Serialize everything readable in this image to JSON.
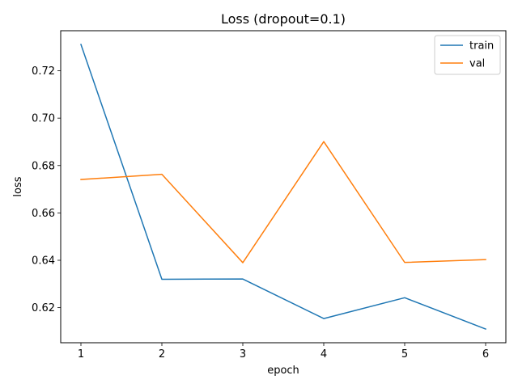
{
  "chart_data": {
    "type": "line",
    "title": "Loss (dropout=0.1)",
    "xlabel": "epoch",
    "ylabel": "loss",
    "x": [
      1,
      2,
      3,
      4,
      5,
      6
    ],
    "xlim": [
      0.75,
      6.25
    ],
    "ylim": [
      0.6052,
      0.7369
    ],
    "xticks": [
      1,
      2,
      3,
      4,
      5,
      6
    ],
    "yticks": [
      0.62,
      0.64,
      0.66,
      0.68,
      0.7,
      0.72
    ],
    "ytick_labels": [
      "0.62",
      "0.64",
      "0.66",
      "0.68",
      "0.70",
      "0.72"
    ],
    "grid": false,
    "legend_position": "top-right",
    "series": [
      {
        "name": "train",
        "color": "#1f77b4",
        "values": [
          0.7311,
          0.632,
          0.6321,
          0.6154,
          0.6242,
          0.611
        ]
      },
      {
        "name": "val",
        "color": "#ff7f0e",
        "values": [
          0.6741,
          0.6763,
          0.639,
          0.6901,
          0.6391,
          0.6403
        ]
      }
    ]
  }
}
